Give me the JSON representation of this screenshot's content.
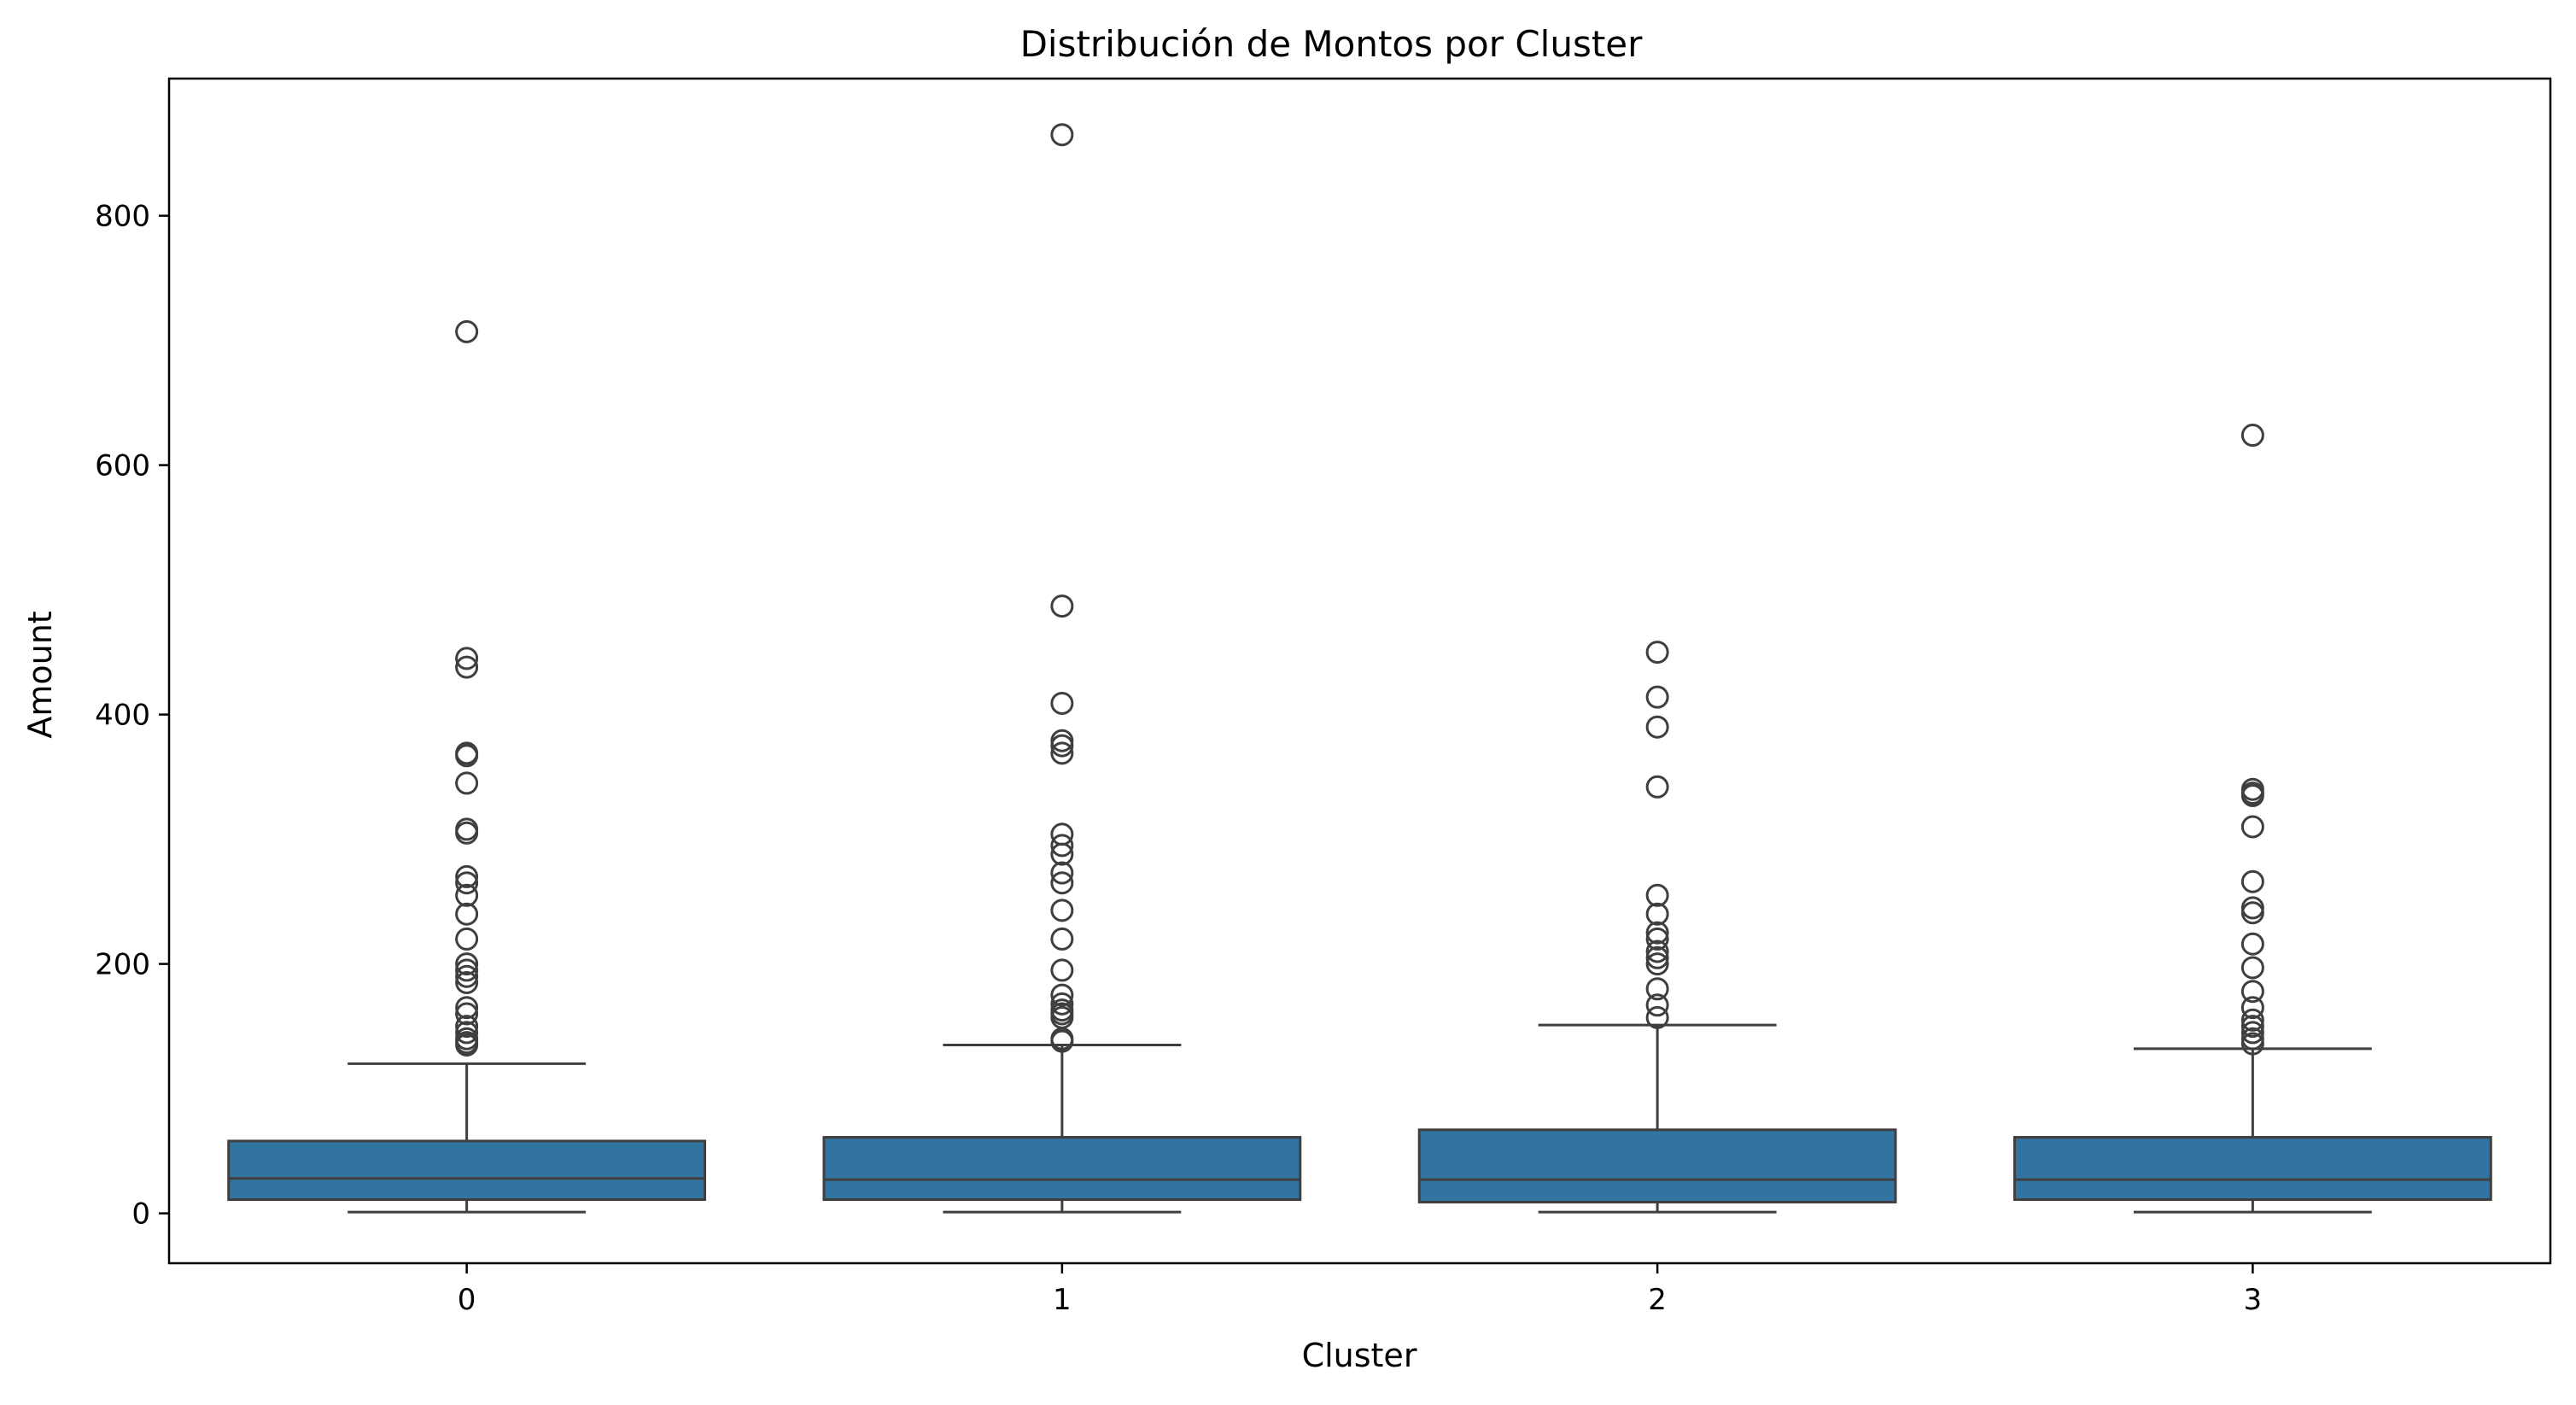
{
  "chart_data": {
    "type": "box",
    "title": "Distribución de Montos por Cluster",
    "xlabel": "Cluster",
    "ylabel": "Amount",
    "categories": [
      "0",
      "1",
      "2",
      "3"
    ],
    "ylim": [
      -40,
      910
    ],
    "yticks": [
      0,
      200,
      400,
      600,
      800
    ],
    "grid": false,
    "legend": "none",
    "box_color": "#3274a1",
    "line_color": "#3f3f3f",
    "boxes": [
      {
        "category": "0",
        "whisker_low": 1,
        "q1": 11,
        "median": 28,
        "q3": 58,
        "whisker_high": 120,
        "outliers": [
          707,
          445,
          438,
          369,
          367,
          345,
          308,
          305,
          270,
          265,
          255,
          240,
          220,
          200,
          195,
          190,
          185,
          165,
          160,
          150,
          145,
          140,
          137,
          135
        ]
      },
      {
        "category": "1",
        "whisker_low": 1,
        "q1": 11,
        "median": 27,
        "q3": 61,
        "whisker_high": 135,
        "outliers": [
          865,
          487,
          409,
          379,
          375,
          369,
          304,
          295,
          288,
          273,
          265,
          243,
          220,
          195,
          175,
          168,
          163,
          160,
          157,
          140,
          138
        ]
      },
      {
        "category": "2",
        "whisker_low": 1,
        "q1": 9,
        "median": 27,
        "q3": 67,
        "whisker_high": 151,
        "outliers": [
          450,
          414,
          390,
          342,
          255,
          240,
          225,
          220,
          210,
          205,
          200,
          180,
          167,
          157
        ]
      },
      {
        "category": "3",
        "whisker_low": 1,
        "q1": 11,
        "median": 27,
        "q3": 61,
        "whisker_high": 132,
        "outliers": [
          624,
          340,
          337,
          335,
          310,
          266,
          245,
          241,
          216,
          197,
          178,
          165,
          155,
          150,
          145,
          140,
          136
        ]
      }
    ]
  }
}
